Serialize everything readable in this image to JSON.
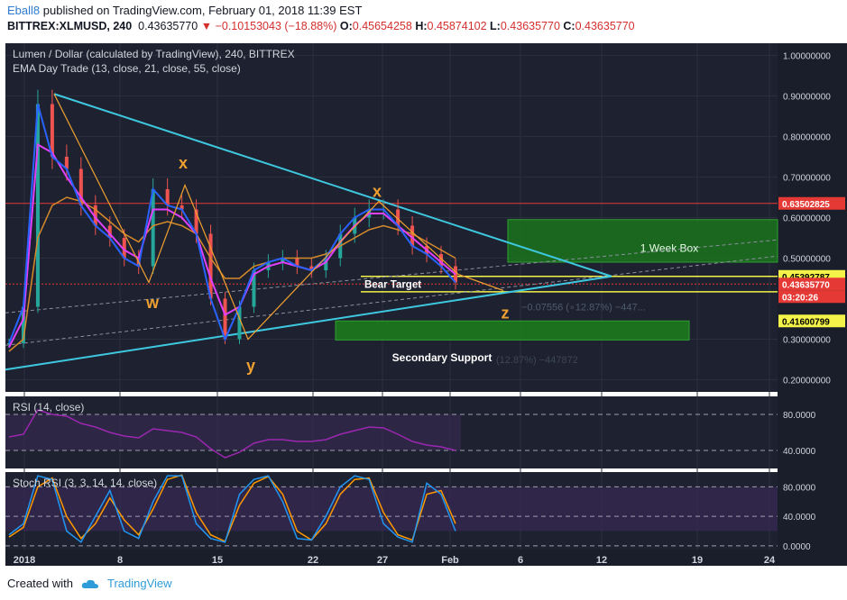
{
  "header": {
    "user": "Eball8",
    "published": "published on TradingView.com, February 01, 2018 11:39 EST",
    "symbol": "BITTREX:XLMUSD, 240",
    "price": "0.43635770",
    "change": "−0.10153043 (−18.88%)",
    "ohlc": [
      {
        "label": "O:",
        "value": "0.45654258"
      },
      {
        "label": "H:",
        "value": "0.45874102"
      },
      {
        "label": "L:",
        "value": "0.43635770"
      },
      {
        "label": "C:",
        "value": "0.43635770"
      }
    ]
  },
  "footer": {
    "created_with": "Created with",
    "brand": "TradingView"
  },
  "colors": {
    "background": "#1e2230",
    "up": "#26a69a",
    "down": "#ef5350",
    "ema13": "#2962ff",
    "ema21": "#e040fb",
    "ema55": "#d68a2a",
    "trend": "#3ec8e0",
    "wave": "#f0a030",
    "box_green": "#1b7f1b",
    "rsi": "#9c27b0",
    "stoch_k": "#2196f3",
    "stoch_d": "#ff9800"
  },
  "chart_data": [
    {
      "type": "line",
      "title": "Lumen / Dollar (calculated by TradingView), 240, BITTREX",
      "indicator": "EMA Day Trade (13, close, 21, close, 55, close)",
      "x_ticks": [
        "2018",
        "8",
        "15",
        "22",
        "27",
        "Feb",
        "6",
        "12",
        "19",
        "24"
      ],
      "y_ticks": [
        "1.00000000",
        "0.90000000",
        "0.80000000",
        "0.70000000",
        "0.60000000",
        "0.50000000",
        "0.30000000",
        "0.20000000"
      ],
      "ylim": [
        0.17,
        1.03
      ],
      "x": [
        "Jan 1",
        "Jan 2",
        "Jan 3",
        "Jan 4",
        "Jan 5",
        "Jan 6",
        "Jan 7",
        "Jan 8",
        "Jan 9",
        "Jan 10",
        "Jan 11",
        "Jan 12",
        "Jan 13",
        "Jan 14",
        "Jan 15",
        "Jan 16",
        "Jan 17",
        "Jan 18",
        "Jan 19",
        "Jan 20",
        "Jan 21",
        "Jan 22",
        "Jan 23",
        "Jan 24",
        "Jan 25",
        "Jan 26",
        "Jan 27",
        "Jan 28",
        "Jan 29",
        "Jan 30",
        "Jan 31",
        "Feb 1"
      ],
      "series": [
        {
          "values": [
            0.29,
            0.38,
            0.88,
            0.75,
            0.72,
            0.63,
            0.58,
            0.55,
            0.5,
            0.48,
            0.67,
            0.63,
            0.62,
            0.56,
            0.4,
            0.3,
            0.38,
            0.47,
            0.49,
            0.5,
            0.48,
            0.47,
            0.5,
            0.56,
            0.6,
            0.62,
            0.62,
            0.58,
            0.53,
            0.51,
            0.48,
            0.44
          ]
        },
        {
          "values": [
            0.28,
            0.35,
            0.78,
            0.76,
            0.7,
            0.65,
            0.6,
            0.56,
            0.52,
            0.5,
            0.62,
            0.62,
            0.6,
            0.56,
            0.45,
            0.36,
            0.38,
            0.46,
            0.48,
            0.49,
            0.48,
            0.47,
            0.49,
            0.54,
            0.58,
            0.61,
            0.61,
            0.58,
            0.55,
            0.52,
            0.49,
            0.46
          ]
        },
        {
          "values": [
            0.27,
            0.3,
            0.55,
            0.63,
            0.65,
            0.64,
            0.62,
            0.59,
            0.56,
            0.54,
            0.58,
            0.59,
            0.58,
            0.56,
            0.5,
            0.45,
            0.45,
            0.48,
            0.49,
            0.5,
            0.5,
            0.5,
            0.51,
            0.53,
            0.55,
            0.57,
            0.58,
            0.57,
            0.56,
            0.54,
            0.52,
            0.5
          ]
        }
      ],
      "price_tags": [
        "0.63502825",
        "0.45392787",
        "0.43635770",
        "03:20:26",
        "0.41600799"
      ],
      "annotations": {
        "waves": [
          "x",
          "w",
          "x",
          "y",
          "z"
        ],
        "boxes": [
          "1 Week Box",
          "Bear Target",
          "Secondary Support"
        ],
        "faint_text": [
          "−0.07556 (∘12.87%) −447... ",
          "(12.87%) −447872"
        ]
      }
    },
    {
      "type": "line",
      "title": "RSI (14, close)",
      "y_ticks": [
        "80.0000",
        "40.0000"
      ],
      "ylim": [
        20,
        100
      ],
      "series": [
        {
          "values": [
            55,
            58,
            85,
            80,
            78,
            70,
            66,
            60,
            56,
            54,
            64,
            62,
            60,
            55,
            42,
            32,
            38,
            48,
            52,
            52,
            50,
            50,
            52,
            58,
            62,
            66,
            65,
            58,
            50,
            46,
            44,
            40
          ]
        }
      ]
    },
    {
      "type": "line",
      "title": "Stoch RSI (3, 3, 14, 14, close)",
      "y_ticks": [
        "80.0000",
        "40.0000",
        "0.0000"
      ],
      "ylim": [
        -5,
        100
      ],
      "series": [
        {
          "values": [
            15,
            30,
            95,
            90,
            20,
            5,
            40,
            75,
            20,
            10,
            60,
            95,
            95,
            30,
            10,
            5,
            70,
            90,
            95,
            60,
            10,
            8,
            40,
            80,
            95,
            90,
            30,
            12,
            5,
            85,
            70,
            20
          ]
        },
        {
          "values": [
            12,
            25,
            80,
            92,
            40,
            10,
            30,
            65,
            35,
            15,
            50,
            90,
            96,
            45,
            15,
            6,
            55,
            85,
            94,
            70,
            20,
            8,
            30,
            70,
            90,
            92,
            45,
            15,
            8,
            70,
            75,
            30
          ]
        }
      ]
    }
  ]
}
